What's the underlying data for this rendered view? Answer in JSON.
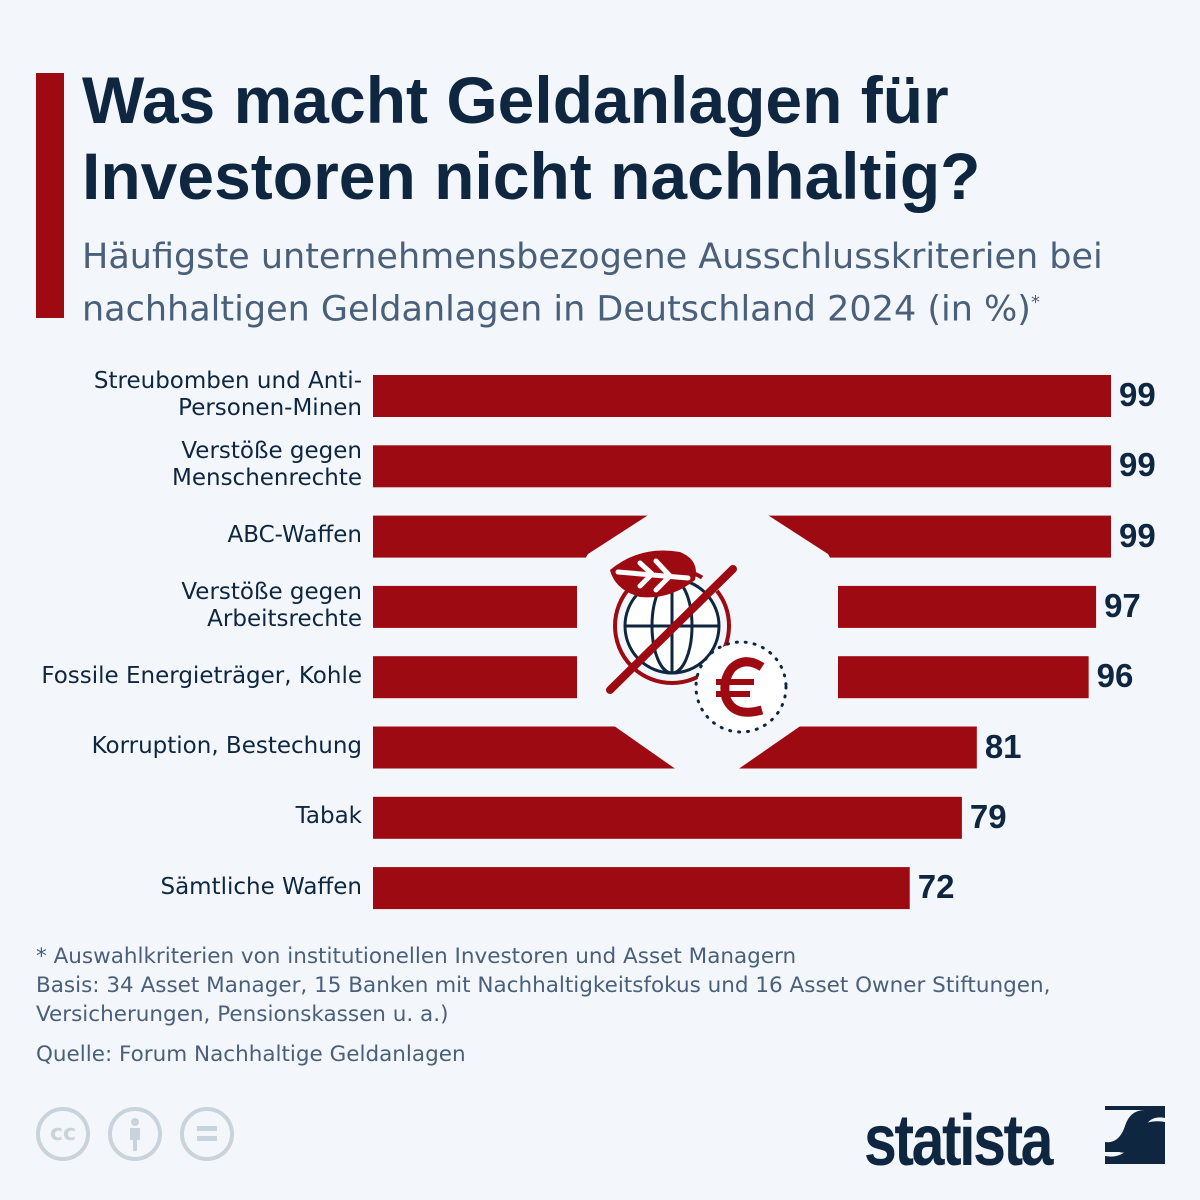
{
  "header": {
    "title": "Was macht Geldanlagen für Investoren nicht nachhaltig?",
    "subtitle": "Häufigste unternehmensbezogene Ausschlusskriterien bei nachhaltigen Geldanlagen in Deutschland 2024 (in %)",
    "subtitle_mark": "*"
  },
  "chart_data": {
    "type": "bar",
    "orientation": "horizontal",
    "categories": [
      "Streubomben und Anti-Personen-Minen",
      "Verstöße gegen Menschenrechte",
      "ABC-Waffen",
      "Verstöße gegen Arbeitsrechte",
      "Fossile Energieträger, Kohle",
      "Korruption, Bestechung",
      "Tabak",
      "Sämtliche Waffen"
    ],
    "values": [
      99,
      99,
      99,
      97,
      96,
      81,
      79,
      72
    ],
    "value_labels": [
      "99",
      "99",
      "99",
      "97",
      "96",
      "81",
      "79",
      "72"
    ],
    "xlim": [
      0,
      99
    ],
    "grid": false,
    "bar_color": "#9e0a12"
  },
  "center_icon": "leaf-globe-crossed-euro-icon",
  "footer": {
    "note": "* Auswahlkriterien von institutionellen Investoren und Asset Managern",
    "basis": "Basis: 34 Asset Manager, 15 Banken mit Nachhaltigkeitsfokus und 16 Asset Owner Stiftungen, Versicherungen, Pensionskassen u. a.)",
    "source": "Quelle: Forum Nachhaltige Geldanlagen",
    "license_icons": [
      "cc-icon",
      "attribution-icon",
      "no-derivatives-icon"
    ],
    "cc_text": "cc",
    "brand": "statista"
  },
  "colors": {
    "accent": "#9e0a12",
    "text": "#0f2640",
    "background": "#f3f7fb"
  }
}
